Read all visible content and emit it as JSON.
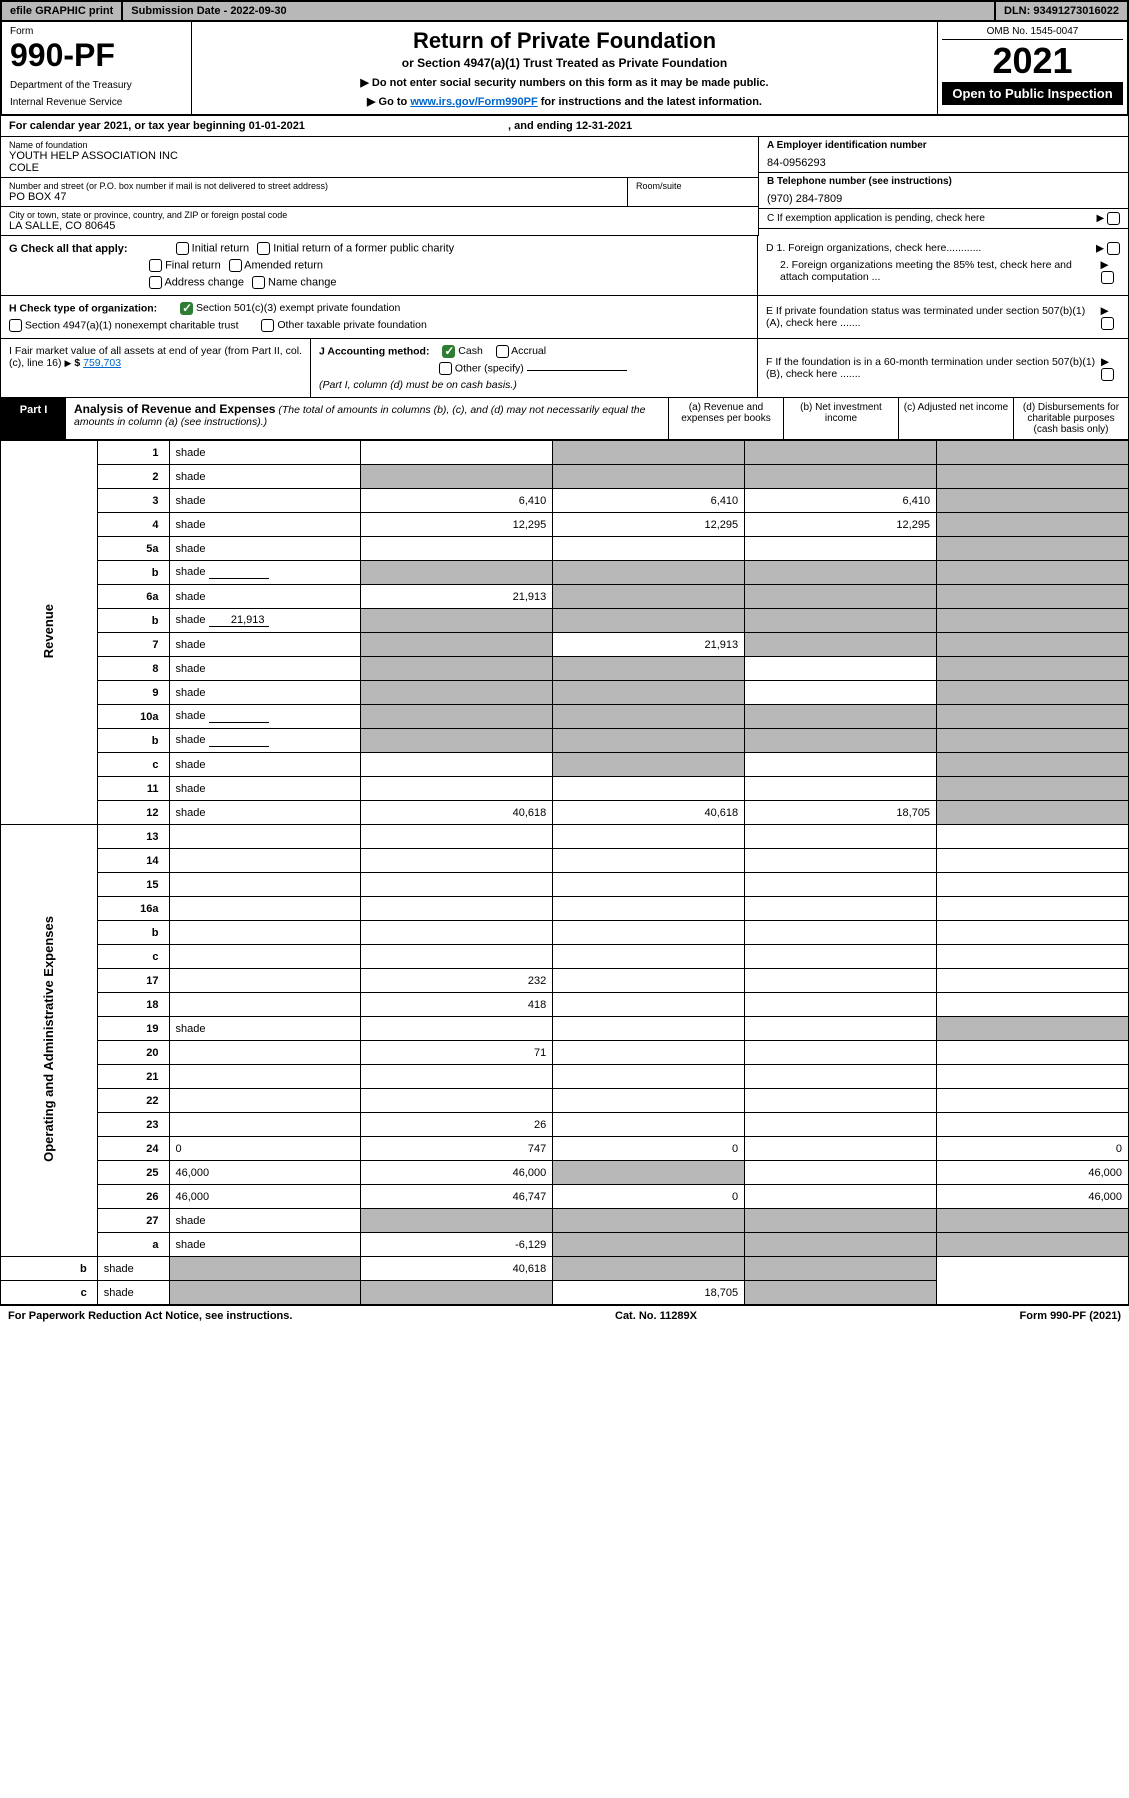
{
  "topbar": {
    "efile": "efile GRAPHIC print",
    "subdate_label": "Submission Date - 2022-09-30",
    "dln": "DLN: 93491273016022"
  },
  "header": {
    "form_label": "Form",
    "form_number": "990-PF",
    "dept1": "Department of the Treasury",
    "dept2": "Internal Revenue Service",
    "title": "Return of Private Foundation",
    "subtitle": "or Section 4947(a)(1) Trust Treated as Private Foundation",
    "note1": "▶ Do not enter social security numbers on this form as it may be made public.",
    "note2_pre": "▶ Go to ",
    "note2_link": "www.irs.gov/Form990PF",
    "note2_post": " for instructions and the latest information.",
    "omb": "OMB No. 1545-0047",
    "taxyear": "2021",
    "open_pub": "Open to Public Inspection"
  },
  "calyear": {
    "text_pre": "For calendar year 2021, or tax year beginning ",
    "begin": "01-01-2021",
    "text_mid": " , and ending ",
    "end": "12-31-2021"
  },
  "info": {
    "name_label": "Name of foundation",
    "name1": "YOUTH HELP ASSOCIATION INC",
    "name2": "COLE",
    "addr_label": "Number and street (or P.O. box number if mail is not delivered to street address)",
    "addr": "PO BOX 47",
    "room_label": "Room/suite",
    "city_label": "City or town, state or province, country, and ZIP or foreign postal code",
    "city": "LA SALLE, CO  80645",
    "a_label": "A Employer identification number",
    "a_val": "84-0956293",
    "b_label": "B Telephone number (see instructions)",
    "b_val": "(970) 284-7809",
    "c_label": "C If exemption application is pending, check here"
  },
  "g": {
    "label": "G Check all that apply:",
    "opts": [
      "Initial return",
      "Initial return of a former public charity",
      "Final return",
      "Amended return",
      "Address change",
      "Name change"
    ]
  },
  "d": {
    "d1": "D 1. Foreign organizations, check here............",
    "d2": "2. Foreign organizations meeting the 85% test, check here and attach computation ..."
  },
  "h": {
    "label": "H Check type of organization:",
    "opt1": "Section 501(c)(3) exempt private foundation",
    "opt2": "Section 4947(a)(1) nonexempt charitable trust",
    "opt3": "Other taxable private foundation"
  },
  "e": {
    "text": "E  If private foundation status was terminated under section 507(b)(1)(A), check here ......."
  },
  "i": {
    "label": "I Fair market value of all assets at end of year (from Part II, col. (c), line 16)",
    "val": "759,703"
  },
  "j": {
    "label": "J Accounting method:",
    "cash": "Cash",
    "accrual": "Accrual",
    "other": "Other (specify)",
    "note": "(Part I, column (d) must be on cash basis.)"
  },
  "f": {
    "text": "F  If the foundation is in a 60-month termination under section 507(b)(1)(B), check here ......."
  },
  "part1": {
    "label": "Part I",
    "title": "Analysis of Revenue and Expenses",
    "note": " (The total of amounts in columns (b), (c), and (d) may not necessarily equal the amounts in column (a) (see instructions).)",
    "col_a": "(a)   Revenue and expenses per books",
    "col_b": "(b)   Net investment income",
    "col_c": "(c)   Adjusted net income",
    "col_d": "(d)   Disbursements for charitable purposes (cash basis only)"
  },
  "side": {
    "revenue": "Revenue",
    "expenses": "Operating and Administrative Expenses"
  },
  "rows": [
    {
      "n": "1",
      "d": "shade",
      "a": "",
      "b": "shade",
      "c": "shade"
    },
    {
      "n": "2",
      "d": "shade",
      "a": "shade",
      "b": "shade",
      "c": "shade"
    },
    {
      "n": "3",
      "d": "shade",
      "a": "6,410",
      "b": "6,410",
      "c": "6,410"
    },
    {
      "n": "4",
      "d": "shade",
      "a": "12,295",
      "b": "12,295",
      "c": "12,295"
    },
    {
      "n": "5a",
      "d": "shade",
      "a": "",
      "b": "",
      "c": ""
    },
    {
      "n": "b",
      "d": "shade",
      "a": "shade",
      "b": "shade",
      "c": "shade",
      "inline": ""
    },
    {
      "n": "6a",
      "d": "shade",
      "a": "21,913",
      "b": "shade",
      "c": "shade"
    },
    {
      "n": "b",
      "d": "shade",
      "a": "shade",
      "b": "shade",
      "c": "shade",
      "inline": "21,913"
    },
    {
      "n": "7",
      "d": "shade",
      "a": "shade",
      "b": "21,913",
      "c": "shade"
    },
    {
      "n": "8",
      "d": "shade",
      "a": "shade",
      "b": "shade",
      "c": ""
    },
    {
      "n": "9",
      "d": "shade",
      "a": "shade",
      "b": "shade",
      "c": ""
    },
    {
      "n": "10a",
      "d": "shade",
      "a": "shade",
      "b": "shade",
      "c": "shade",
      "inline": ""
    },
    {
      "n": "b",
      "d": "shade",
      "a": "shade",
      "b": "shade",
      "c": "shade",
      "inline": ""
    },
    {
      "n": "c",
      "d": "shade",
      "a": "",
      "b": "shade",
      "c": ""
    },
    {
      "n": "11",
      "d": "shade",
      "a": "",
      "b": "",
      "c": ""
    },
    {
      "n": "12",
      "d": "shade",
      "a": "40,618",
      "b": "40,618",
      "c": "18,705"
    },
    {
      "n": "13",
      "d": "",
      "a": "",
      "b": "",
      "c": ""
    },
    {
      "n": "14",
      "d": "",
      "a": "",
      "b": "",
      "c": ""
    },
    {
      "n": "15",
      "d": "",
      "a": "",
      "b": "",
      "c": ""
    },
    {
      "n": "16a",
      "d": "",
      "a": "",
      "b": "",
      "c": ""
    },
    {
      "n": "b",
      "d": "",
      "a": "",
      "b": "",
      "c": ""
    },
    {
      "n": "c",
      "d": "",
      "a": "",
      "b": "",
      "c": ""
    },
    {
      "n": "17",
      "d": "",
      "a": "232",
      "b": "",
      "c": ""
    },
    {
      "n": "18",
      "d": "",
      "a": "418",
      "b": "",
      "c": ""
    },
    {
      "n": "19",
      "d": "shade",
      "a": "",
      "b": "",
      "c": ""
    },
    {
      "n": "20",
      "d": "",
      "a": "71",
      "b": "",
      "c": ""
    },
    {
      "n": "21",
      "d": "",
      "a": "",
      "b": "",
      "c": ""
    },
    {
      "n": "22",
      "d": "",
      "a": "",
      "b": "",
      "c": ""
    },
    {
      "n": "23",
      "d": "",
      "a": "26",
      "b": "",
      "c": ""
    },
    {
      "n": "24",
      "d": "0",
      "a": "747",
      "b": "0",
      "c": ""
    },
    {
      "n": "25",
      "d": "46,000",
      "a": "46,000",
      "b": "shade",
      "c": ""
    },
    {
      "n": "26",
      "d": "46,000",
      "a": "46,747",
      "b": "0",
      "c": ""
    },
    {
      "n": "27",
      "d": "shade",
      "a": "shade",
      "b": "shade",
      "c": "shade"
    },
    {
      "n": "a",
      "d": "shade",
      "a": "-6,129",
      "b": "shade",
      "c": "shade"
    },
    {
      "n": "b",
      "d": "shade",
      "a": "shade",
      "b": "40,618",
      "c": "shade"
    },
    {
      "n": "c",
      "d": "shade",
      "a": "shade",
      "b": "shade",
      "c": "18,705"
    }
  ],
  "footer": {
    "left": "For Paperwork Reduction Act Notice, see instructions.",
    "mid": "Cat. No. 11289X",
    "right": "Form 990-PF (2021)"
  }
}
